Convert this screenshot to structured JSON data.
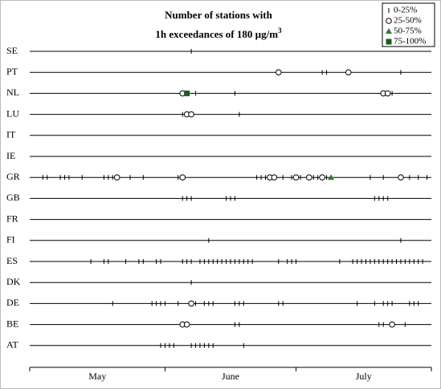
{
  "chart_data": {
    "type": "strip",
    "title": "Number of stations with",
    "subtitle": "1h exceedances of 180 µg/m",
    "subtitle_superscript": "3",
    "categories": [
      "SE",
      "PT",
      "NL",
      "LU",
      "IT",
      "IE",
      "GR",
      "GB",
      "FR",
      "FI",
      "ES",
      "DK",
      "DE",
      "BE",
      "AT"
    ],
    "xlim": [
      0,
      92
    ],
    "xticks": [
      0,
      31,
      61,
      92
    ],
    "months": [
      "May",
      "June",
      "July"
    ],
    "series": [
      {
        "name": "0-25%",
        "marker": "tick",
        "color": "#000000",
        "values": [
          [
            37
          ],
          [
            67,
            68,
            85
          ],
          [
            35,
            38,
            47,
            83
          ],
          [
            35,
            48
          ],
          [],
          [],
          [
            3,
            4,
            7,
            8,
            9,
            12,
            17,
            18,
            19,
            23,
            26,
            34,
            52,
            53,
            54,
            58,
            60,
            62,
            65,
            66,
            67,
            68,
            78,
            81,
            87,
            89,
            91
          ],
          [
            35,
            36,
            37,
            45,
            46,
            47,
            79,
            80,
            81,
            82
          ],
          [],
          [
            41,
            85
          ],
          [
            14,
            17,
            18,
            22,
            25,
            26,
            29,
            30,
            35,
            36,
            37,
            39,
            40,
            41,
            42,
            43,
            44,
            45,
            46,
            47,
            48,
            49,
            50,
            51,
            57,
            59,
            60,
            61,
            71,
            74,
            75,
            76,
            77,
            78,
            79,
            80,
            81,
            82,
            83,
            84,
            85,
            86,
            87,
            88,
            89,
            90
          ],
          [
            37
          ],
          [
            19,
            28,
            29,
            30,
            31,
            34,
            38,
            40,
            41,
            42,
            47,
            48,
            49,
            57,
            58,
            75,
            79,
            81,
            82,
            83,
            87,
            88,
            89
          ],
          [
            47,
            48,
            80,
            81,
            86
          ],
          [
            30,
            31,
            32,
            33,
            37,
            38,
            39,
            40,
            41,
            42,
            49
          ]
        ]
      },
      {
        "name": "25-50%",
        "marker": "circle",
        "color": "#000000",
        "values": [
          [],
          [
            57,
            73
          ],
          [
            35,
            81,
            82
          ],
          [
            36,
            37
          ],
          [],
          [],
          [
            20,
            35,
            55,
            56,
            61,
            64,
            67,
            85
          ],
          [],
          [],
          [],
          [],
          [],
          [
            37
          ],
          [
            35,
            36,
            83
          ],
          []
        ]
      },
      {
        "name": "50-75%",
        "marker": "triangle",
        "color": "#2e7d32",
        "values": [
          [],
          [],
          [],
          [],
          [],
          [],
          [
            69
          ],
          [],
          [],
          [],
          [],
          [],
          [],
          [],
          []
        ]
      },
      {
        "name": "75-100%",
        "marker": "square",
        "color": "#1f5a1f",
        "values": [
          [],
          [],
          [
            36
          ],
          [],
          [],
          [],
          [],
          [],
          [],
          [],
          [],
          [],
          [],
          [],
          []
        ]
      }
    ]
  }
}
